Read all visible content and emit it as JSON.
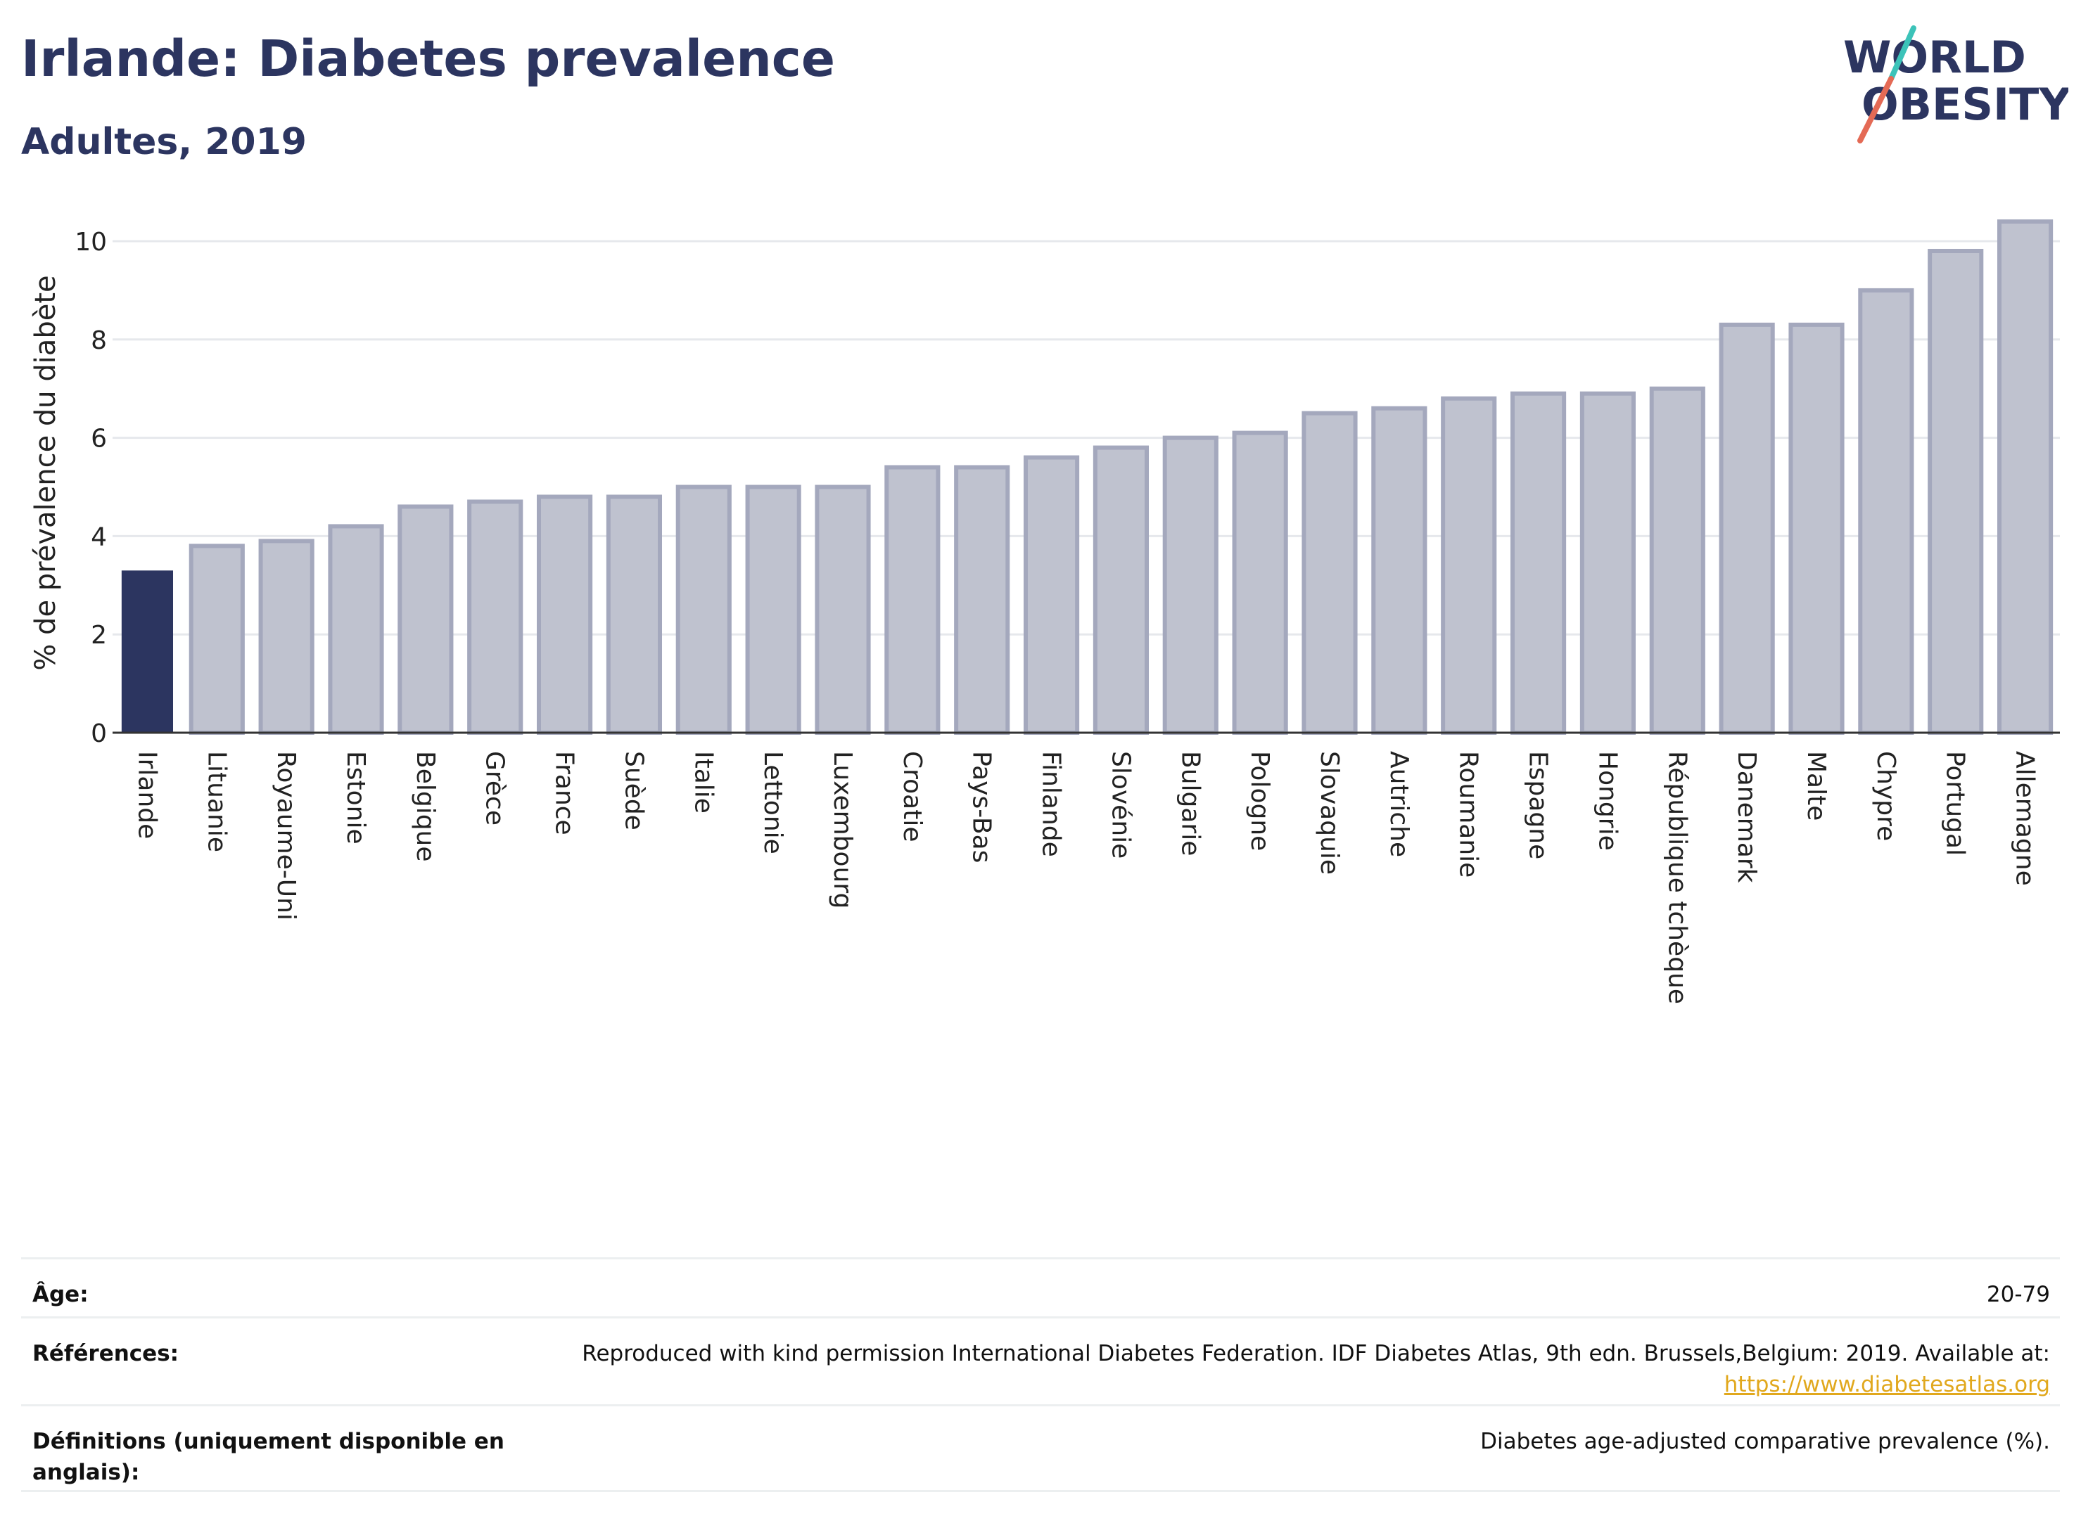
{
  "header": {
    "title": "Irlande: Diabetes prevalence",
    "subtitle": "Adultes, 2019"
  },
  "logo": {
    "line1": "WORLD",
    "line2": "OBESITY",
    "text_color": "#2c3560",
    "slash_teal": "#3cc3b9",
    "slash_red": "#e46a55"
  },
  "colors": {
    "highlight_bar": "#2c3560",
    "other_bar_fill": "#bfc2cf",
    "other_bar_stroke": "#a4a8bd",
    "link": "#e1a81d"
  },
  "chart_data": {
    "type": "bar",
    "ylabel": "% de prévalence du diabète",
    "ylim": [
      0,
      10.6
    ],
    "yticks": [
      0,
      2,
      4,
      6,
      8,
      10
    ],
    "grid": true,
    "highlight": "Irlande",
    "categories": [
      "Irlande",
      "Lituanie",
      "Royaume-Uni",
      "Estonie",
      "Belgique",
      "Grèce",
      "France",
      "Suède",
      "Italie",
      "Lettonie",
      "Luxembourg",
      "Croatie",
      "Pays-Bas",
      "Finlande",
      "Slovénie",
      "Bulgarie",
      "Pologne",
      "Slovaquie",
      "Autriche",
      "Roumanie",
      "Espagne",
      "Hongrie",
      "République tchèque",
      "Danemark",
      "Malte",
      "Chypre",
      "Portugal",
      "Allemagne"
    ],
    "values": [
      3.3,
      3.8,
      3.9,
      4.2,
      4.6,
      4.7,
      4.8,
      4.8,
      5.0,
      5.0,
      5.0,
      5.4,
      5.4,
      5.6,
      5.8,
      6.0,
      6.1,
      6.5,
      6.6,
      6.8,
      6.9,
      6.9,
      7.0,
      8.3,
      8.3,
      9.0,
      9.8,
      10.4
    ]
  },
  "meta": {
    "age_label": "Âge:",
    "age_value": "20-79",
    "ref_label": "Références:",
    "ref_value": "Reproduced with kind permission International Diabetes Federation. IDF Diabetes Atlas, 9th edn. Brussels,Belgium: 2019. Available at:",
    "ref_link": "https://www.diabetesatlas.org",
    "def_label": "Définitions (uniquement disponible en anglais):",
    "def_value": "Diabetes age-adjusted comparative prevalence (%)."
  }
}
